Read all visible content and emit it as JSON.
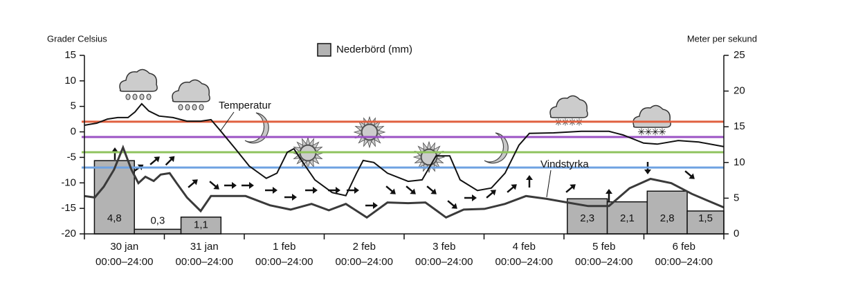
{
  "chart_data": {
    "type": "weather",
    "y_axis_label": "Grader Celsius",
    "y2_axis_label": "Meter per sekund",
    "categories": [
      "30 jan",
      "31 jan",
      "1 feb",
      "2 feb",
      "3 feb",
      "4 feb",
      "5 feb",
      "6 feb"
    ],
    "day_range": "00:00–24:00",
    "xlim": [
      0,
      192
    ],
    "xticks": [
      0,
      24,
      48,
      72,
      96,
      120,
      144,
      168,
      192
    ],
    "ylim": [
      -20,
      15
    ],
    "yticks": [
      15,
      10,
      5,
      0,
      -5,
      -10,
      -15,
      -20
    ],
    "y2lim": [
      0,
      25
    ],
    "y2ticks": [
      25,
      20,
      15,
      10,
      5,
      0
    ],
    "reference_lines": [
      {
        "value": 2,
        "color": "#e0603f"
      },
      {
        "value": -1,
        "color": "#9b52c4"
      },
      {
        "value": -4,
        "color": "#8fc35e"
      },
      {
        "value": -7,
        "color": "#6ea2e2"
      }
    ],
    "precipitation": {
      "name": "Nederbörd (mm)",
      "color": "#b3b3b3",
      "ylim": [
        0,
        11.7
      ],
      "x_start": [
        3,
        15,
        29,
        145,
        157,
        169,
        181
      ],
      "x_end": [
        15,
        29,
        41,
        157,
        169,
        181,
        192
      ],
      "values": [
        4.8,
        0.3,
        1.1,
        2.3,
        2.1,
        2.8,
        1.5
      ],
      "value_labels": [
        "4,8",
        "0,3",
        "1,1",
        "2,3",
        "2,1",
        "2,8",
        "1,5"
      ]
    },
    "series": [
      {
        "name": "Temperatur",
        "color": "#111111",
        "axis": "y",
        "x": [
          0,
          3.7,
          6.9,
          10,
          13.1,
          15.2,
          17.2,
          19.3,
          22.4,
          26.6,
          30.8,
          34.9,
          38,
          41,
          45.3,
          49.5,
          54.6,
          57.8,
          60.9,
          62.9,
          65,
          69.2,
          74.4,
          78.5,
          81.7,
          83.7,
          86.9,
          91,
          97.2,
          101.4,
          105.6,
          109.7,
          112.8,
          118,
          122.2,
          126.3,
          130.5,
          133.6,
          140.9,
          149.2,
          157.5,
          161.7,
          167.9,
          172,
          178.3,
          184.5,
          192
        ],
        "values": [
          1.3,
          1.7,
          2.5,
          2.8,
          2.8,
          3.9,
          5.5,
          4.1,
          3.1,
          2.8,
          2.1,
          2.1,
          2.4,
          0.1,
          -3.3,
          -6.7,
          -9.1,
          -8.1,
          -4,
          -3.3,
          -5.4,
          -9.4,
          -11.9,
          -12.5,
          -8.1,
          -5.6,
          -6,
          -8.1,
          -9.7,
          -9.4,
          -4.7,
          -4.7,
          -9.4,
          -11.5,
          -11,
          -8.1,
          -2.6,
          -0.3,
          -0.2,
          0.1,
          0.1,
          -0.6,
          -2.2,
          -2.4,
          -1.7,
          -2,
          -2.9
        ]
      },
      {
        "name": "Vindstyrka",
        "color": "#3a3a3a",
        "axis": "y2",
        "x": [
          0,
          3.1,
          5.8,
          8.9,
          11.6,
          14.1,
          16.2,
          18.3,
          20.8,
          22.9,
          25.6,
          27.7,
          30.8,
          34.9,
          38,
          43.2,
          48.4,
          55.7,
          61.9,
          68.2,
          73.4,
          78.5,
          84.8,
          91,
          97.2,
          102.4,
          108.6,
          113.9,
          120.1,
          126.3,
          132.6,
          138.8,
          145,
          151.3,
          157.5,
          163.7,
          170,
          176.2,
          182.4,
          192
        ],
        "values": [
          5.3,
          5.1,
          6.6,
          9,
          12.1,
          9,
          7.1,
          8,
          7.4,
          8.3,
          8.5,
          7.1,
          5.1,
          3.2,
          5.3,
          5.3,
          5.3,
          4,
          3.4,
          4.2,
          3.3,
          4.2,
          2.3,
          4.4,
          4.3,
          4.4,
          2.3,
          3.4,
          3.5,
          4.2,
          5.3,
          4.9,
          4.4,
          3.9,
          3.9,
          6.4,
          7.7,
          7.1,
          5.6,
          3.7
        ]
      }
    ]
  }
}
